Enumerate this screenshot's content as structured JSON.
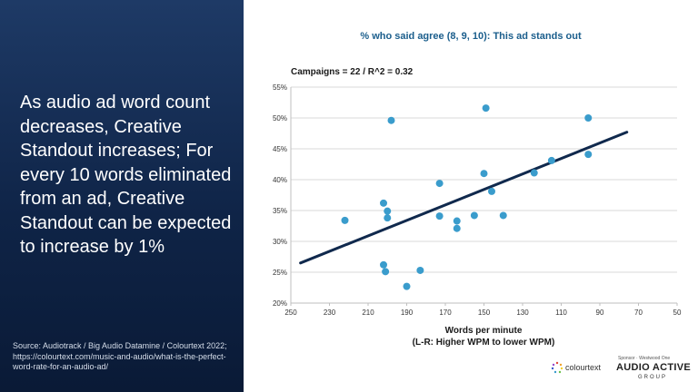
{
  "left_panel": {
    "headline": "As audio ad word count decreases, Creative Standout increases; For every 10 words eliminated from an ad, Creative Standout can be expected to increase by 1%",
    "source": "Source: Audiotrack / Big Audio Datamine / Colourtext 2022; https://colourtext.com/music-and-audio/what-is-the-perfect-word-rate-for-an-audio-ad/"
  },
  "logos": {
    "colourtext": "colourtext",
    "aag_top": "Sponsor · Westwood One",
    "aag_mid": "AUDIO ACTIVE",
    "aag_bot": "GROUP"
  },
  "chart_data": {
    "type": "scatter",
    "title": "% who said agree (8, 9, 10): This ad stands out",
    "subtitle": "Campaigns = 22 / R^2 = 0.32",
    "xlabel": "Words per minute",
    "xlabel_note": "(L-R: Higher WPM to lower WPM)",
    "ylabel": "",
    "x_reversed": true,
    "xlim": [
      250,
      50
    ],
    "ylim": [
      20,
      55
    ],
    "xticks": [
      250,
      230,
      210,
      190,
      170,
      150,
      130,
      110,
      90,
      70,
      50
    ],
    "yticks": [
      20,
      25,
      30,
      35,
      40,
      45,
      50,
      55
    ],
    "ytick_format": "percent",
    "grid": "horizontal",
    "colors": {
      "points": "#3a9ccc",
      "trendline": "#10294d",
      "title": "#1b5e8c",
      "grid": "#d9d9d9"
    },
    "points": [
      {
        "x": 222,
        "y": 33.4
      },
      {
        "x": 202,
        "y": 36.2
      },
      {
        "x": 202,
        "y": 26.2
      },
      {
        "x": 201,
        "y": 25.1
      },
      {
        "x": 200,
        "y": 33.8
      },
      {
        "x": 200,
        "y": 34.9
      },
      {
        "x": 198,
        "y": 49.6
      },
      {
        "x": 190,
        "y": 22.7
      },
      {
        "x": 183,
        "y": 25.3
      },
      {
        "x": 173,
        "y": 39.4
      },
      {
        "x": 173,
        "y": 34.1
      },
      {
        "x": 164,
        "y": 33.3
      },
      {
        "x": 164,
        "y": 32.1
      },
      {
        "x": 155,
        "y": 34.2
      },
      {
        "x": 150,
        "y": 41.0
      },
      {
        "x": 149,
        "y": 51.6
      },
      {
        "x": 146,
        "y": 38.1
      },
      {
        "x": 140,
        "y": 34.2
      },
      {
        "x": 124,
        "y": 41.1
      },
      {
        "x": 115,
        "y": 43.1
      },
      {
        "x": 96,
        "y": 50.0
      },
      {
        "x": 96,
        "y": 44.1
      }
    ],
    "trendline": {
      "x": [
        245,
        76
      ],
      "y": [
        26.5,
        47.7
      ]
    }
  }
}
